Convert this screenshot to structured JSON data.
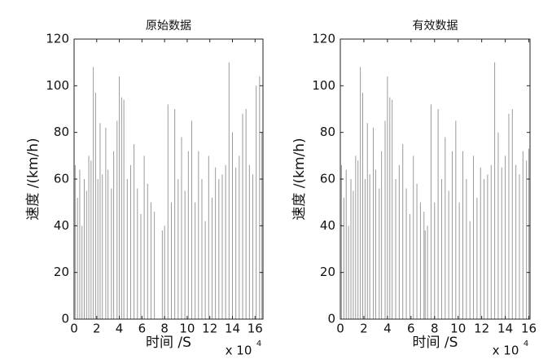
{
  "chart_data": [
    {
      "type": "bar",
      "title": "原始数据",
      "xlabel": "时间 /S",
      "ylabel": "速度 /(km/h)",
      "x_multiplier": "x 10",
      "x_exponent": "4",
      "color": "#9a9a9a",
      "x": [
        0.1,
        0.3,
        0.5,
        0.7,
        0.9,
        1.1,
        1.3,
        1.5,
        1.7,
        1.9,
        2.1,
        2.3,
        2.5,
        2.8,
        3.0,
        3.3,
        3.5,
        3.8,
        4.0,
        4.2,
        4.4,
        4.7,
        5.0,
        5.3,
        5.6,
        5.9,
        6.2,
        6.5,
        6.8,
        7.1,
        7.8,
        8.0,
        8.3,
        8.6,
        8.9,
        9.2,
        9.5,
        9.8,
        10.1,
        10.4,
        10.7,
        11.0,
        11.3,
        11.6,
        11.9,
        12.2,
        12.5,
        12.8,
        13.1,
        13.4,
        13.7,
        14.0,
        14.3,
        14.6,
        14.9,
        15.2,
        15.5,
        15.8,
        16.1,
        16.4,
        16.6
      ],
      "values": [
        66,
        52,
        64,
        40,
        60,
        55,
        70,
        68,
        108,
        97,
        60,
        84,
        62,
        82,
        64,
        56,
        72,
        85,
        104,
        95,
        94,
        60,
        66,
        75,
        56,
        45,
        70,
        58,
        50,
        46,
        38,
        40,
        92,
        50,
        90,
        60,
        78,
        55,
        72,
        85,
        50,
        72,
        60,
        42,
        70,
        52,
        65,
        60,
        62,
        66,
        110,
        80,
        65,
        70,
        88,
        90,
        66,
        62,
        100,
        104,
        80
      ],
      "xlim": [
        0,
        16.7
      ],
      "ylim": [
        0,
        120
      ],
      "xticks": [
        0,
        2,
        4,
        6,
        8,
        10,
        12,
        14,
        16
      ],
      "yticks": [
        0,
        20,
        40,
        60,
        80,
        100,
        120
      ]
    },
    {
      "type": "bar",
      "title": "有效数据",
      "xlabel": "时间 /S",
      "ylabel": "速度 /(km/h)",
      "x_multiplier": "x 10",
      "x_exponent": "4",
      "color": "#9a9a9a",
      "x": [
        0.1,
        0.3,
        0.5,
        0.7,
        0.9,
        1.1,
        1.3,
        1.5,
        1.7,
        1.9,
        2.1,
        2.3,
        2.5,
        2.8,
        3.0,
        3.3,
        3.5,
        3.8,
        4.0,
        4.2,
        4.4,
        4.7,
        5.0,
        5.3,
        5.6,
        5.9,
        6.2,
        6.5,
        6.8,
        7.1,
        7.2,
        7.4,
        7.7,
        8.0,
        8.3,
        8.6,
        8.9,
        9.2,
        9.5,
        9.8,
        10.1,
        10.4,
        10.7,
        11.0,
        11.3,
        11.6,
        11.9,
        12.2,
        12.5,
        12.8,
        13.1,
        13.4,
        13.7,
        14.0,
        14.3,
        14.6,
        14.9,
        15.2,
        15.5,
        15.8,
        16.0
      ],
      "values": [
        66,
        52,
        64,
        40,
        60,
        55,
        70,
        68,
        108,
        97,
        60,
        84,
        62,
        82,
        64,
        56,
        72,
        85,
        104,
        95,
        94,
        60,
        66,
        75,
        56,
        45,
        70,
        58,
        50,
        46,
        38,
        40,
        92,
        50,
        90,
        60,
        78,
        55,
        72,
        85,
        50,
        72,
        60,
        42,
        70,
        52,
        65,
        60,
        62,
        66,
        110,
        80,
        65,
        70,
        88,
        90,
        66,
        62,
        72,
        68,
        73
      ],
      "xlim": [
        0,
        16.1
      ],
      "ylim": [
        0,
        120
      ],
      "xticks": [
        0,
        2,
        4,
        6,
        8,
        10,
        12,
        14,
        16
      ],
      "yticks": [
        0,
        20,
        40,
        60,
        80,
        100,
        120
      ]
    }
  ]
}
